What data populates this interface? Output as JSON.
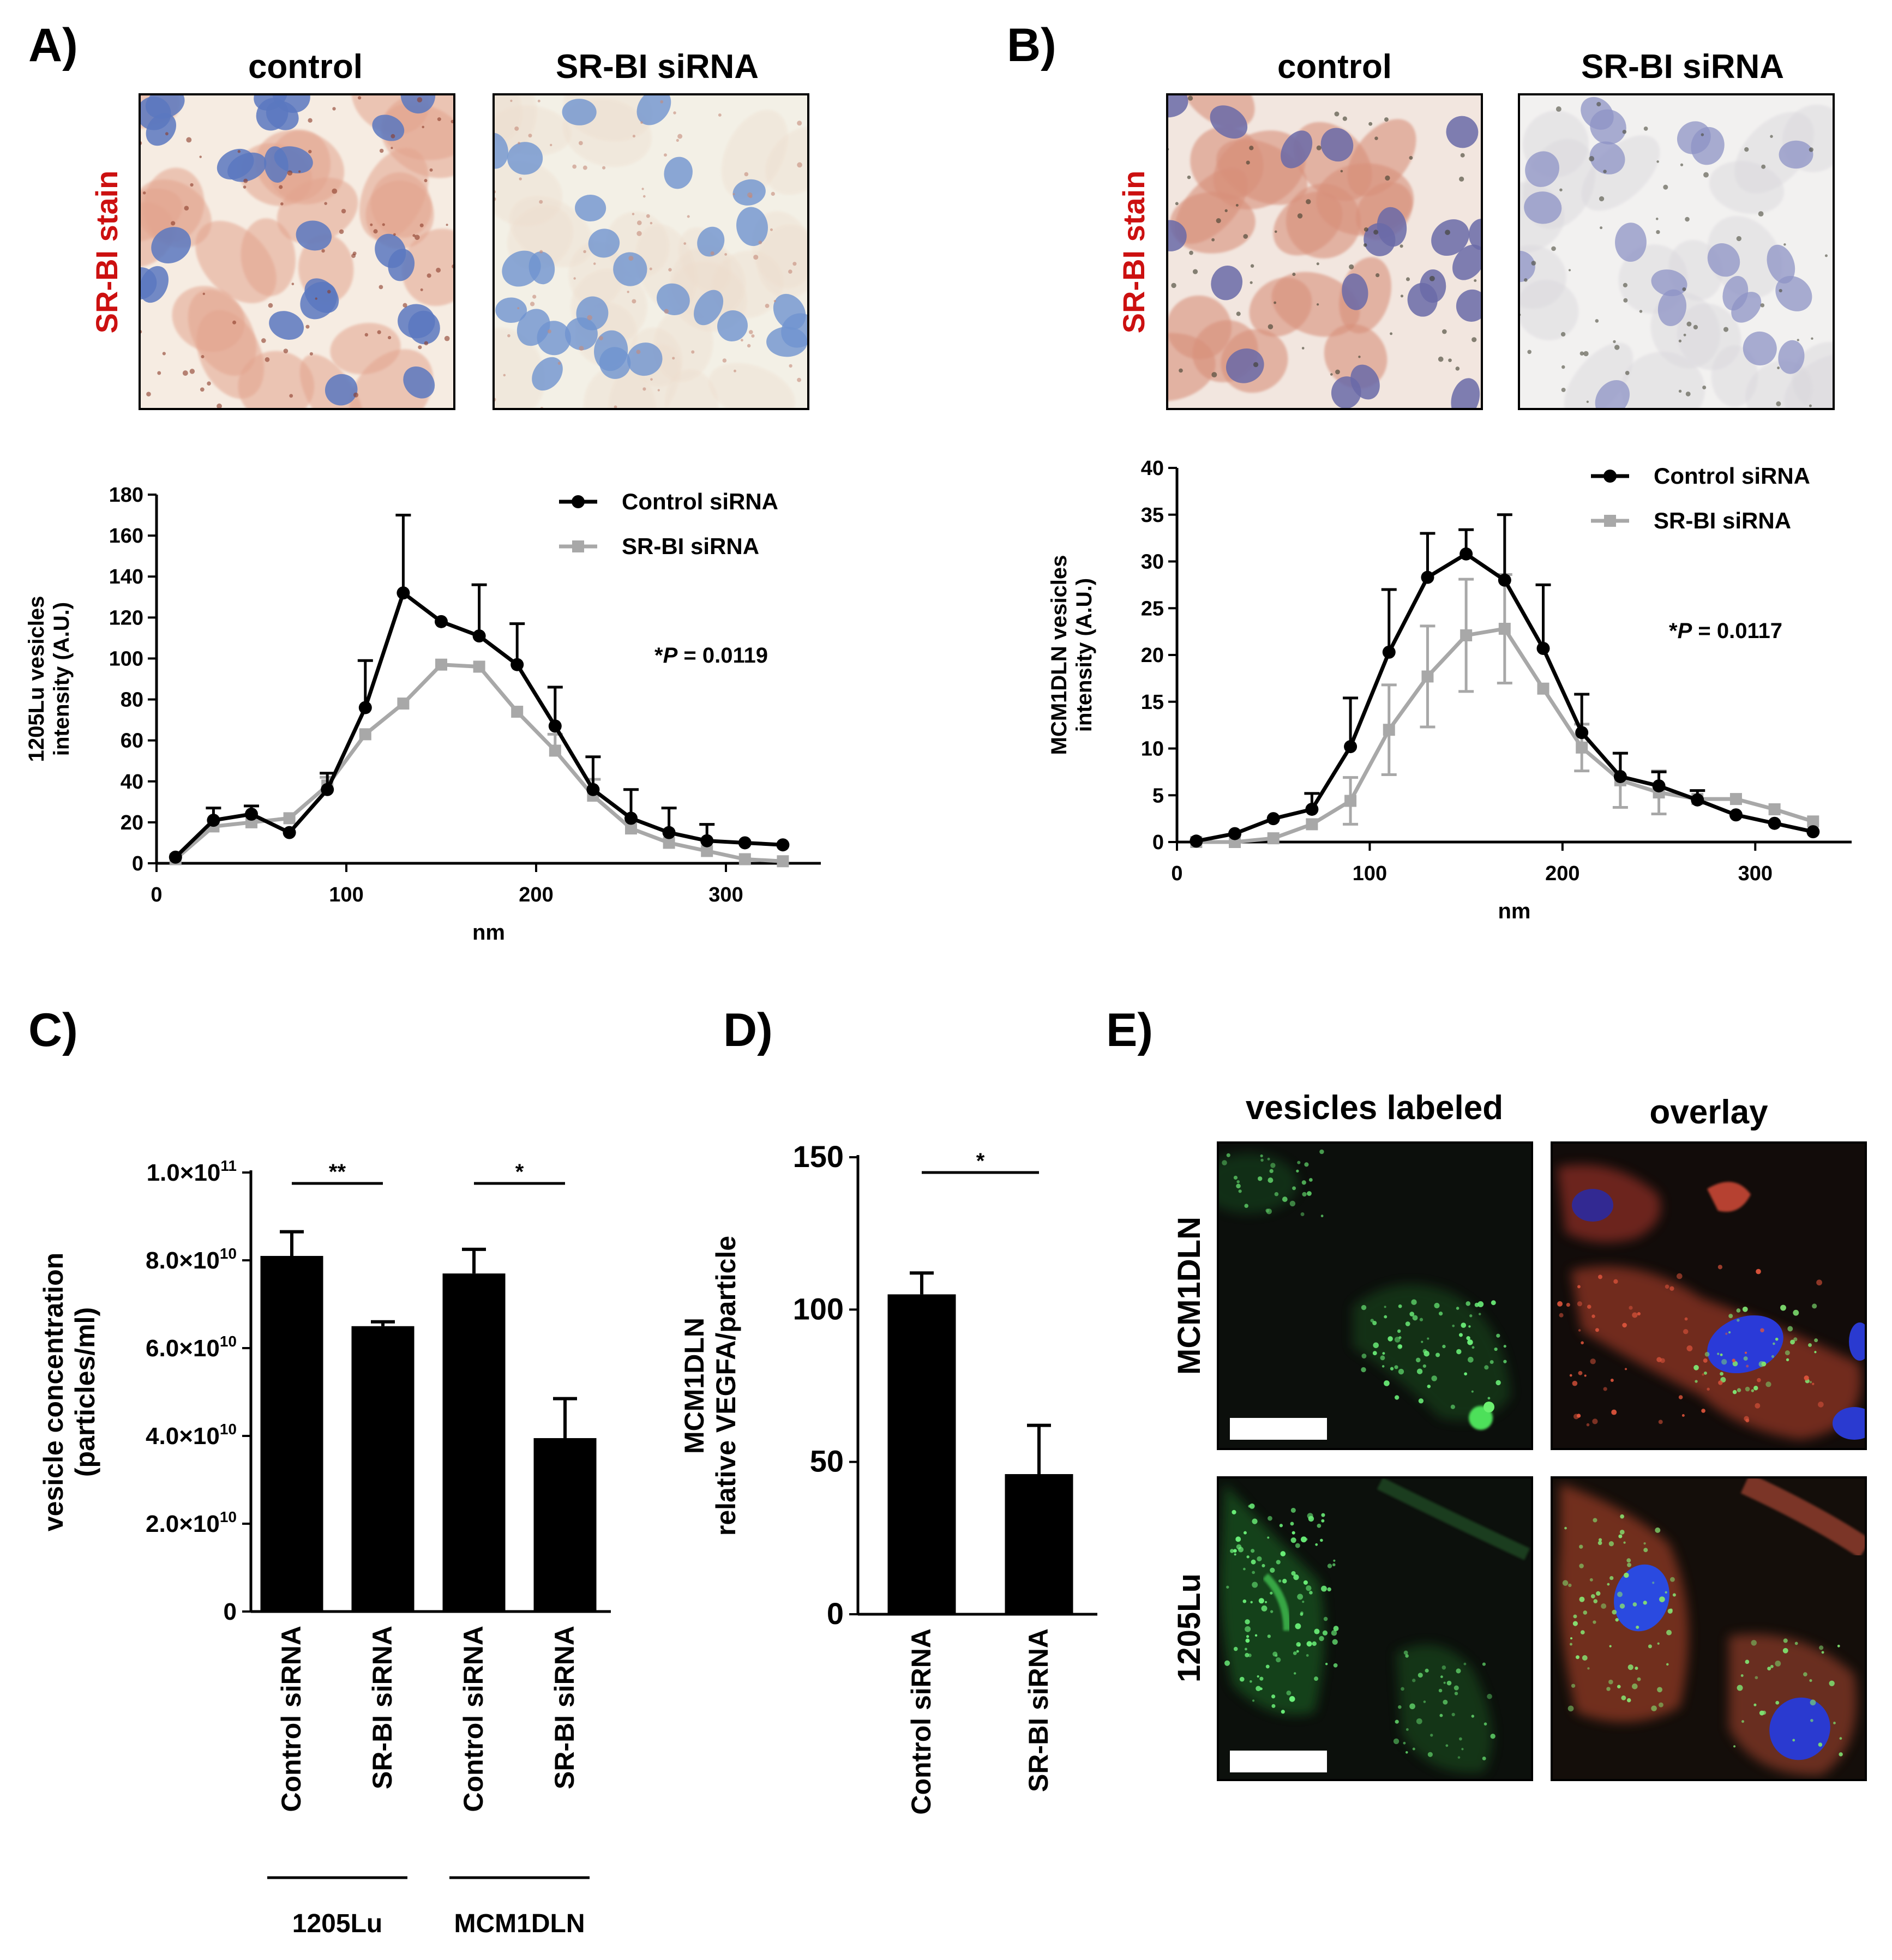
{
  "figure": {
    "panel_letters": [
      "A)",
      "B)",
      "C)",
      "D)",
      "E)"
    ]
  },
  "panel_a": {
    "col_titles": [
      "control",
      "SR-BI siRNA"
    ],
    "row_label": "SR-BI stain",
    "row_label_color": "#cc1010"
  },
  "panel_b": {
    "col_titles": [
      "control",
      "SR-BI siRNA"
    ],
    "row_label": "SR-BI stain",
    "row_label_color": "#cc1010"
  },
  "panel_e": {
    "col_titles": [
      "vesicles labeled",
      "overlay"
    ],
    "row_labels": [
      "MCM1DLN",
      "1205Lu"
    ]
  },
  "colors": {
    "control_line": "#000000",
    "srbi_line": "#a8a8a8",
    "bar": "#000000"
  },
  "chart_data": [
    {
      "id": "A-line",
      "type": "line",
      "xlabel": "nm",
      "ylabel": [
        "1205Lu vesicles",
        "intensity (A.U.)"
      ],
      "xlim": [
        0,
        350
      ],
      "ylim": [
        0,
        180
      ],
      "xticks": [
        0,
        100,
        200,
        300
      ],
      "yticks": [
        0,
        20,
        40,
        60,
        80,
        100,
        120,
        140,
        160,
        180
      ],
      "annotation": {
        "prefix": "*",
        "italic": "P",
        "rest": " = 0.0119"
      },
      "x": [
        10,
        30,
        50,
        70,
        90,
        110,
        130,
        150,
        170,
        190,
        210,
        230,
        250,
        270,
        290,
        310,
        330
      ],
      "series": [
        {
          "name": "Control siRNA",
          "marker": "circle",
          "values": [
            3,
            21,
            24,
            15,
            36,
            76,
            132,
            118,
            111,
            97,
            67,
            36,
            22,
            15,
            11,
            10,
            9
          ],
          "err": [
            0,
            6,
            4,
            0,
            8,
            23,
            38,
            0,
            25,
            20,
            19,
            16,
            14,
            12,
            8,
            0,
            0
          ]
        },
        {
          "name": "SR-BI siRNA",
          "marker": "square",
          "values": [
            2,
            18,
            20,
            22,
            38,
            63,
            78,
            97,
            96,
            74,
            55,
            33,
            17,
            10,
            6,
            2,
            1
          ],
          "err": [
            0,
            0,
            0,
            0,
            4,
            0,
            0,
            0,
            0,
            0,
            8,
            8,
            0,
            0,
            0,
            0,
            0
          ]
        }
      ]
    },
    {
      "id": "B-line",
      "type": "line",
      "xlabel": "nm",
      "ylabel": [
        "MCM1DLN vesicles",
        "intensity (A.U.)"
      ],
      "xlim": [
        0,
        350
      ],
      "ylim": [
        0,
        40
      ],
      "xticks": [
        0,
        100,
        200,
        300
      ],
      "yticks": [
        0,
        5,
        10,
        15,
        20,
        25,
        30,
        35,
        40
      ],
      "annotation": {
        "prefix": "*",
        "italic": "P",
        "rest": " = 0.0117"
      },
      "x": [
        10,
        30,
        50,
        70,
        90,
        110,
        130,
        150,
        170,
        190,
        210,
        230,
        250,
        270,
        290,
        310,
        330
      ],
      "series": [
        {
          "name": "Control siRNA",
          "marker": "circle",
          "values": [
            0.1,
            0.9,
            2.5,
            3.5,
            10.2,
            20.3,
            28.3,
            30.8,
            28,
            20.7,
            11.7,
            7,
            6,
            4.5,
            2.9,
            2,
            1.1
          ],
          "err": [
            0,
            0,
            0,
            1.7,
            5.2,
            6.7,
            4.7,
            2.6,
            7,
            6.8,
            4.1,
            2.5,
            1.5,
            1,
            0,
            0,
            0
          ]
        },
        {
          "name": "SR-BI siRNA",
          "marker": "square",
          "values": [
            0,
            0,
            0.4,
            1.9,
            4.4,
            12,
            17.7,
            22.1,
            22.8,
            16.4,
            10.1,
            6.6,
            5.3,
            4.6,
            4.6,
            3.5,
            2.2
          ],
          "err": [
            0,
            0,
            0,
            0,
            2.5,
            4.8,
            5.4,
            6,
            5.8,
            0,
            2.5,
            2.9,
            2.3,
            0,
            0,
            0,
            0
          ],
          "err_dir": "down"
        }
      ]
    },
    {
      "id": "C-bar",
      "type": "bar",
      "ylabel": [
        "vesicle concentration",
        "(particles/ml)"
      ],
      "ylim": [
        0,
        100000000000.0
      ],
      "yticks": [
        {
          "value": 0,
          "mant": "0",
          "exp": ""
        },
        {
          "value": 20000000000.0,
          "mant": "2.0×10",
          "exp": "10"
        },
        {
          "value": 40000000000.0,
          "mant": "4.0×10",
          "exp": "10"
        },
        {
          "value": 60000000000.0,
          "mant": "6.0×10",
          "exp": "10"
        },
        {
          "value": 80000000000.0,
          "mant": "8.0×10",
          "exp": "10"
        },
        {
          "value": 100000000000.0,
          "mant": "1.0×10",
          "exp": "11"
        }
      ],
      "categories": [
        "Control siRNA",
        "SR-BI siRNA",
        "Control siRNA",
        "SR-BI siRNA"
      ],
      "values": [
        81000000000.0,
        65000000000.0,
        77000000000.0,
        39500000000.0
      ],
      "err": [
        5500000000.0,
        1000000000.0,
        5500000000.0,
        9000000000.0
      ],
      "groups": [
        {
          "label": "1205Lu",
          "bars": [
            0,
            1
          ]
        },
        {
          "label": "MCM1DLN",
          "bars": [
            2,
            3
          ]
        }
      ],
      "significance": [
        {
          "bars": [
            0,
            1
          ],
          "label": "**"
        },
        {
          "bars": [
            2,
            3
          ],
          "label": "*"
        }
      ]
    },
    {
      "id": "D-bar",
      "type": "bar",
      "ylabel": [
        "MCM1DLN",
        "relative VEGFA/particle"
      ],
      "ylim": [
        0,
        150
      ],
      "yticks": [
        0,
        50,
        100,
        150
      ],
      "categories": [
        "Control siRNA",
        "SR-BI siRNA"
      ],
      "values": [
        105,
        46
      ],
      "err": [
        7,
        16
      ],
      "significance": [
        {
          "bars": [
            0,
            1
          ],
          "label": "*"
        }
      ]
    }
  ]
}
